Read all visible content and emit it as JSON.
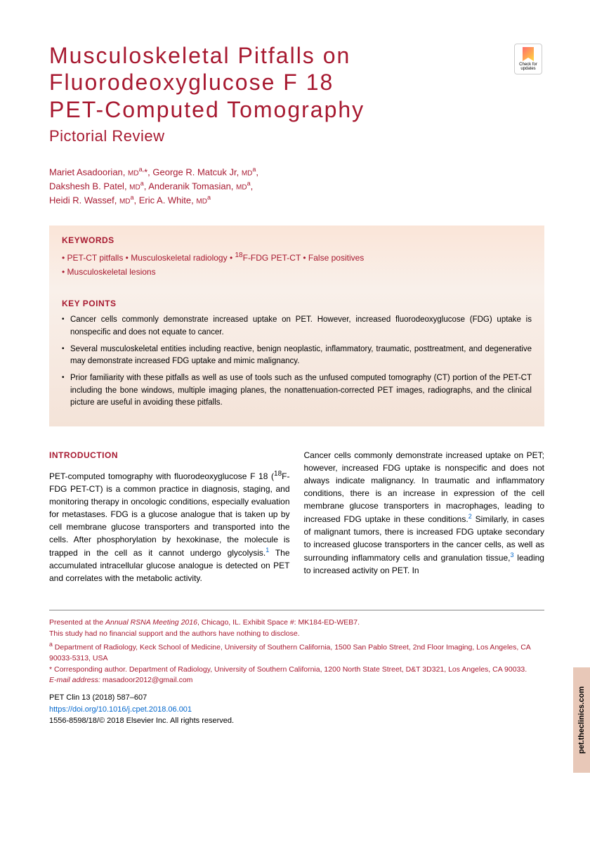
{
  "title": {
    "line1": "Musculoskeletal Pitfalls on",
    "line2": "Fluorodeoxyglucose F 18",
    "line3": "PET-Computed Tomography",
    "subtitle": "Pictorial Review"
  },
  "check_updates_label": "Check for updates",
  "authors_html": "Mariet Asadoorian, <span class='deg'>MD</span><span class='aff'>a,</span>*, George R. Matcuk Jr, <span class='deg'>MD</span><span class='aff'>a</span>,<br>Dakshesh B. Patel, <span class='deg'>MD</span><span class='aff'>a</span>, Anderanik Tomasian, <span class='deg'>MD</span><span class='aff'>a</span>,<br>Heidi R. Wassef, <span class='deg'>MD</span><span class='aff'>a</span>, Eric A. White, <span class='deg'>MD</span><span class='aff'>a</span>",
  "keywords": {
    "title": "KEYWORDS",
    "items": "• PET-CT pitfalls • Musculoskeletal radiology • <sup>18</sup>F-FDG PET-CT • False positives<br>• Musculoskeletal lesions"
  },
  "keypoints": {
    "title": "KEY POINTS",
    "items": [
      "Cancer cells commonly demonstrate increased uptake on PET. However, increased fluorodeoxyglucose (FDG) uptake is nonspecific and does not equate to cancer.",
      "Several musculoskeletal entities including reactive, benign neoplastic, inflammatory, traumatic, posttreatment, and degenerative may demonstrate increased FDG uptake and mimic malignancy.",
      "Prior familiarity with these pitfalls as well as use of tools such as the unfused computed tomography (CT) portion of the PET-CT including the bone windows, multiple imaging planes, the nonattenuation-corrected PET images, radiographs, and the clinical picture are useful in avoiding these pitfalls."
    ]
  },
  "intro": {
    "heading": "INTRODUCTION",
    "col1": "PET-computed tomography with fluorodeoxyglucose F 18 (<sup>18</sup>F-FDG PET-CT) is a common practice in diagnosis, staging, and monitoring therapy in oncologic conditions, especially evaluation for metastases. FDG is a glucose analogue that is taken up by cell membrane glucose transporters and transported into the cells. After phosphorylation by hexokinase, the molecule is trapped in the cell as it cannot undergo glycolysis.<span class='ref-sup'>1</span> The accumulated intracellular glucose analogue is detected on PET and correlates with the metabolic activity.",
    "col2": "Cancer cells commonly demonstrate increased uptake on PET; however, increased FDG uptake is nonspecific and does not always indicate malignancy. In traumatic and inflammatory conditions, there is an increase in expression of the cell membrane glucose transporters in macrophages, leading to increased FDG uptake in these conditions.<span class='ref-sup'>2</span> Similarly, in cases of malignant tumors, there is increased FDG uptake secondary to increased glucose transporters in the cancer cells, as well as surrounding inflammatory cells and granulation tissue,<span class='ref-sup'>3</span> leading to increased activity on PET. In"
  },
  "footer": {
    "presented": "Presented at the <span class='italic'>Annual RSNA Meeting 2016</span>, Chicago, IL. Exhibit Space #: MK184-ED-WEB7.",
    "disclosure": "This study had no financial support and the authors have nothing to disclose.",
    "affiliation": "<sup>a</sup> Department of Radiology, Keck School of Medicine, University of Southern California, 1500 San Pablo Street, 2nd Floor Imaging, Los Angeles, CA 90033-5313, USA",
    "corresponding": "* Corresponding author. Department of Radiology, University of Southern California, 1200 North State Street, D&T 3D321, Los Angeles, CA 90033.",
    "email_label": "E-mail address:",
    "email": "masadoor2012@gmail.com",
    "journal": "PET Clin 13 (2018) 587–607",
    "doi": "https://doi.org/10.1016/j.cpet.2018.06.001",
    "copyright": "1556-8598/18/© 2018 Elsevier Inc. All rights reserved."
  },
  "side_tab": "pet.theclinics.com",
  "colors": {
    "brand": "#a71930",
    "link": "#0066cc",
    "box_grad_top": "#fae5d8",
    "box_grad_bot": "#f4e3d8",
    "tab_bg": "#e8c8b8"
  }
}
